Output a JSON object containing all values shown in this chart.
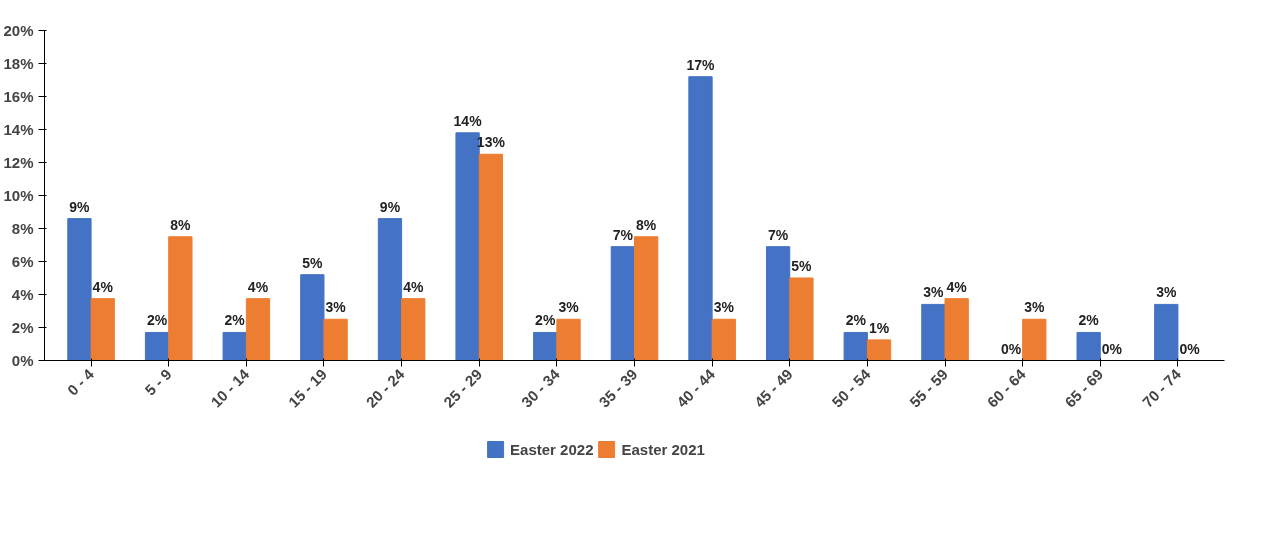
{
  "chart_data": {
    "type": "bar",
    "categories": [
      "0 - 4",
      "5 - 9",
      "10 - 14",
      "15 - 19",
      "20 - 24",
      "25 - 29",
      "30 - 34",
      "35 - 39",
      "40 - 44",
      "45 - 49",
      "50 - 54",
      "55 - 59",
      "60 - 64",
      "65 - 69",
      "70 - 74"
    ],
    "series": [
      {
        "name": "Easter 2022",
        "color": "#4472c4",
        "values": [
          8.6,
          1.7,
          1.7,
          5.2,
          8.6,
          13.8,
          1.7,
          6.9,
          17.2,
          6.9,
          1.7,
          3.4,
          0,
          1.7,
          3.4
        ],
        "value_labels": [
          "9%",
          "2%",
          "2%",
          "5%",
          "9%",
          "14%",
          "2%",
          "7%",
          "17%",
          "7%",
          "2%",
          "3%",
          "0%",
          "2%",
          "3%"
        ]
      },
      {
        "name": "Easter 2021",
        "color": "#ed7d31",
        "values": [
          3.75,
          7.5,
          3.75,
          2.5,
          3.75,
          12.5,
          2.5,
          7.5,
          2.5,
          5.0,
          1.25,
          3.75,
          2.5,
          0,
          0
        ],
        "value_labels": [
          "4%",
          "8%",
          "4%",
          "3%",
          "4%",
          "13%",
          "3%",
          "8%",
          "3%",
          "5%",
          "1%",
          "4%",
          "3%",
          "0%",
          "0%"
        ]
      }
    ],
    "ylim": [
      0,
      20
    ],
    "yticks": [
      {
        "value": 0,
        "label": "0%"
      },
      {
        "value": 2,
        "label": "2%"
      },
      {
        "value": 4,
        "label": "4%"
      },
      {
        "value": 6,
        "label": "6%"
      },
      {
        "value": 8,
        "label": "8%"
      },
      {
        "value": 10,
        "label": "10%"
      },
      {
        "value": 12,
        "label": "12%"
      },
      {
        "value": 14,
        "label": "14%"
      },
      {
        "value": 16,
        "label": "16%"
      },
      {
        "value": 18,
        "label": "18%"
      },
      {
        "value": 20,
        "label": "20%"
      }
    ],
    "grid": false,
    "legend": "bottom"
  }
}
